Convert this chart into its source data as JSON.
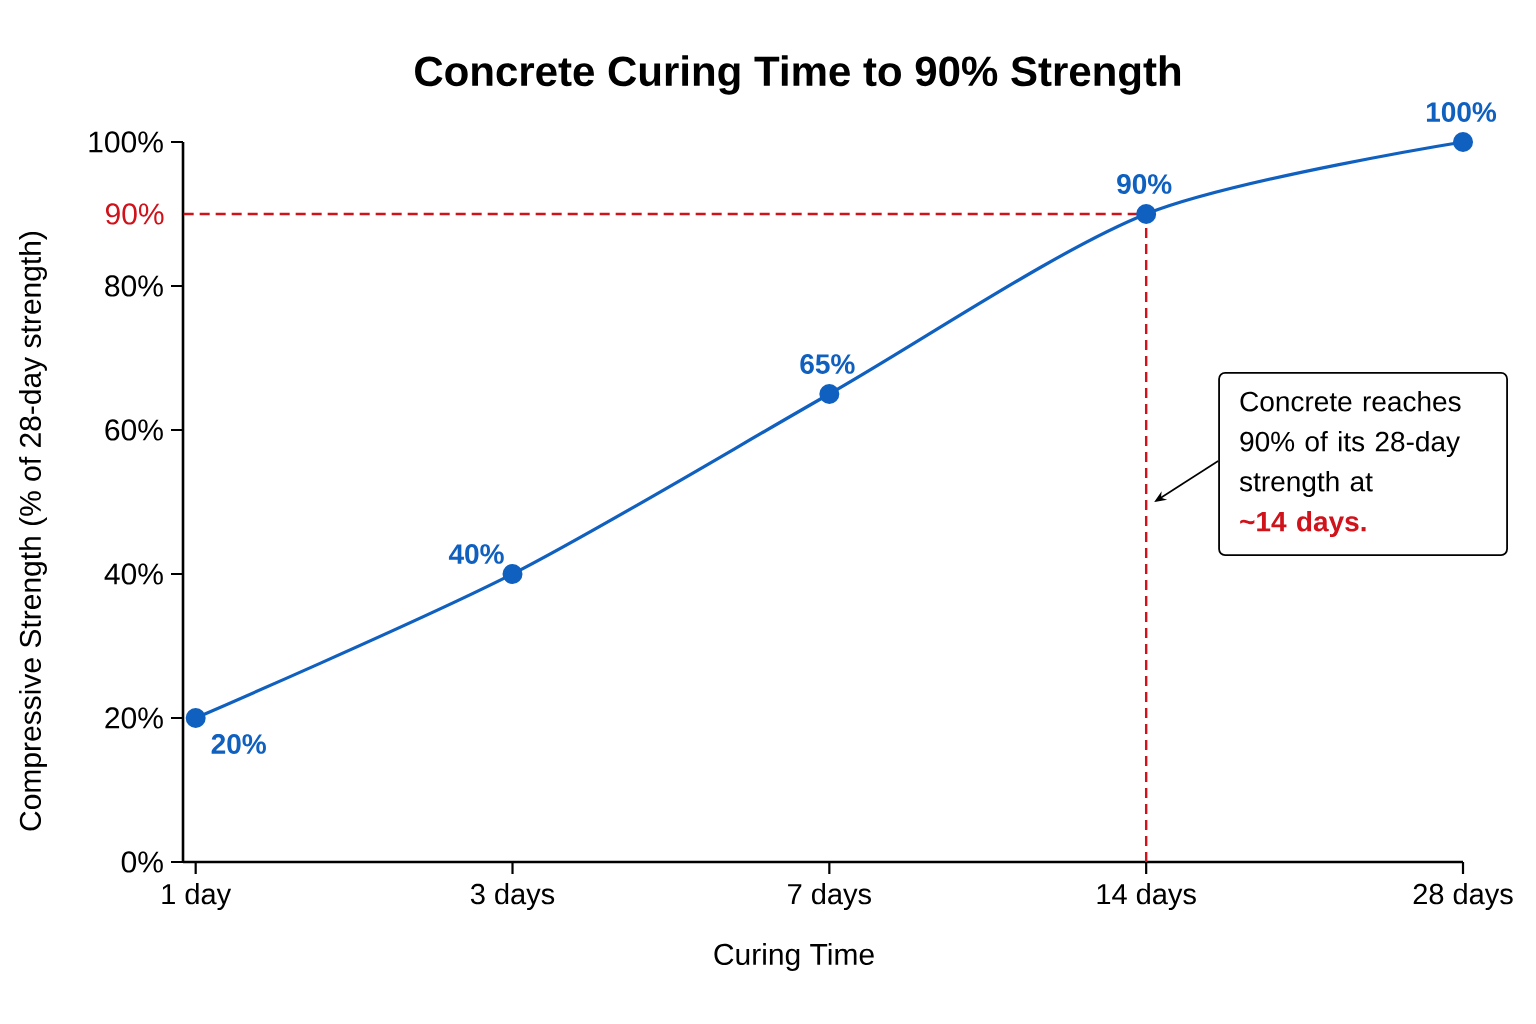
{
  "chart_data": {
    "type": "line",
    "title": "Concrete Curing Time to 90% Strength",
    "xlabel": "Curing Time",
    "ylabel": "Compressive Strength (% of 28-day strength)",
    "categories": [
      "1 day",
      "3 days",
      "7 days",
      "14 days",
      "28 days"
    ],
    "values": [
      20,
      40,
      65,
      90,
      100
    ],
    "value_labels": [
      "20%",
      "40%",
      "65%",
      "90%",
      "100%"
    ],
    "color": "#1060c0",
    "marker": "circle",
    "line_style": "solid",
    "ylim": [
      0,
      100
    ],
    "yticks": [
      {
        "value": 0,
        "label": "0%"
      },
      {
        "value": 20,
        "label": "20%"
      },
      {
        "value": 40,
        "label": "40%"
      },
      {
        "value": 60,
        "label": "60%"
      },
      {
        "value": 80,
        "label": "80%"
      },
      {
        "value": 100,
        "label": "100%"
      }
    ],
    "ref_lines": [
      {
        "axis": "y",
        "value": 90,
        "label": "90%",
        "color": "#d0121b",
        "line_style": "dashed"
      },
      {
        "axis": "x",
        "value": "14 days",
        "color": "#d0121b",
        "line_style": "dashed"
      }
    ],
    "annotations": [
      "Concrete reaches 90% of its 28-day strength at",
      "~14 days."
    ]
  }
}
